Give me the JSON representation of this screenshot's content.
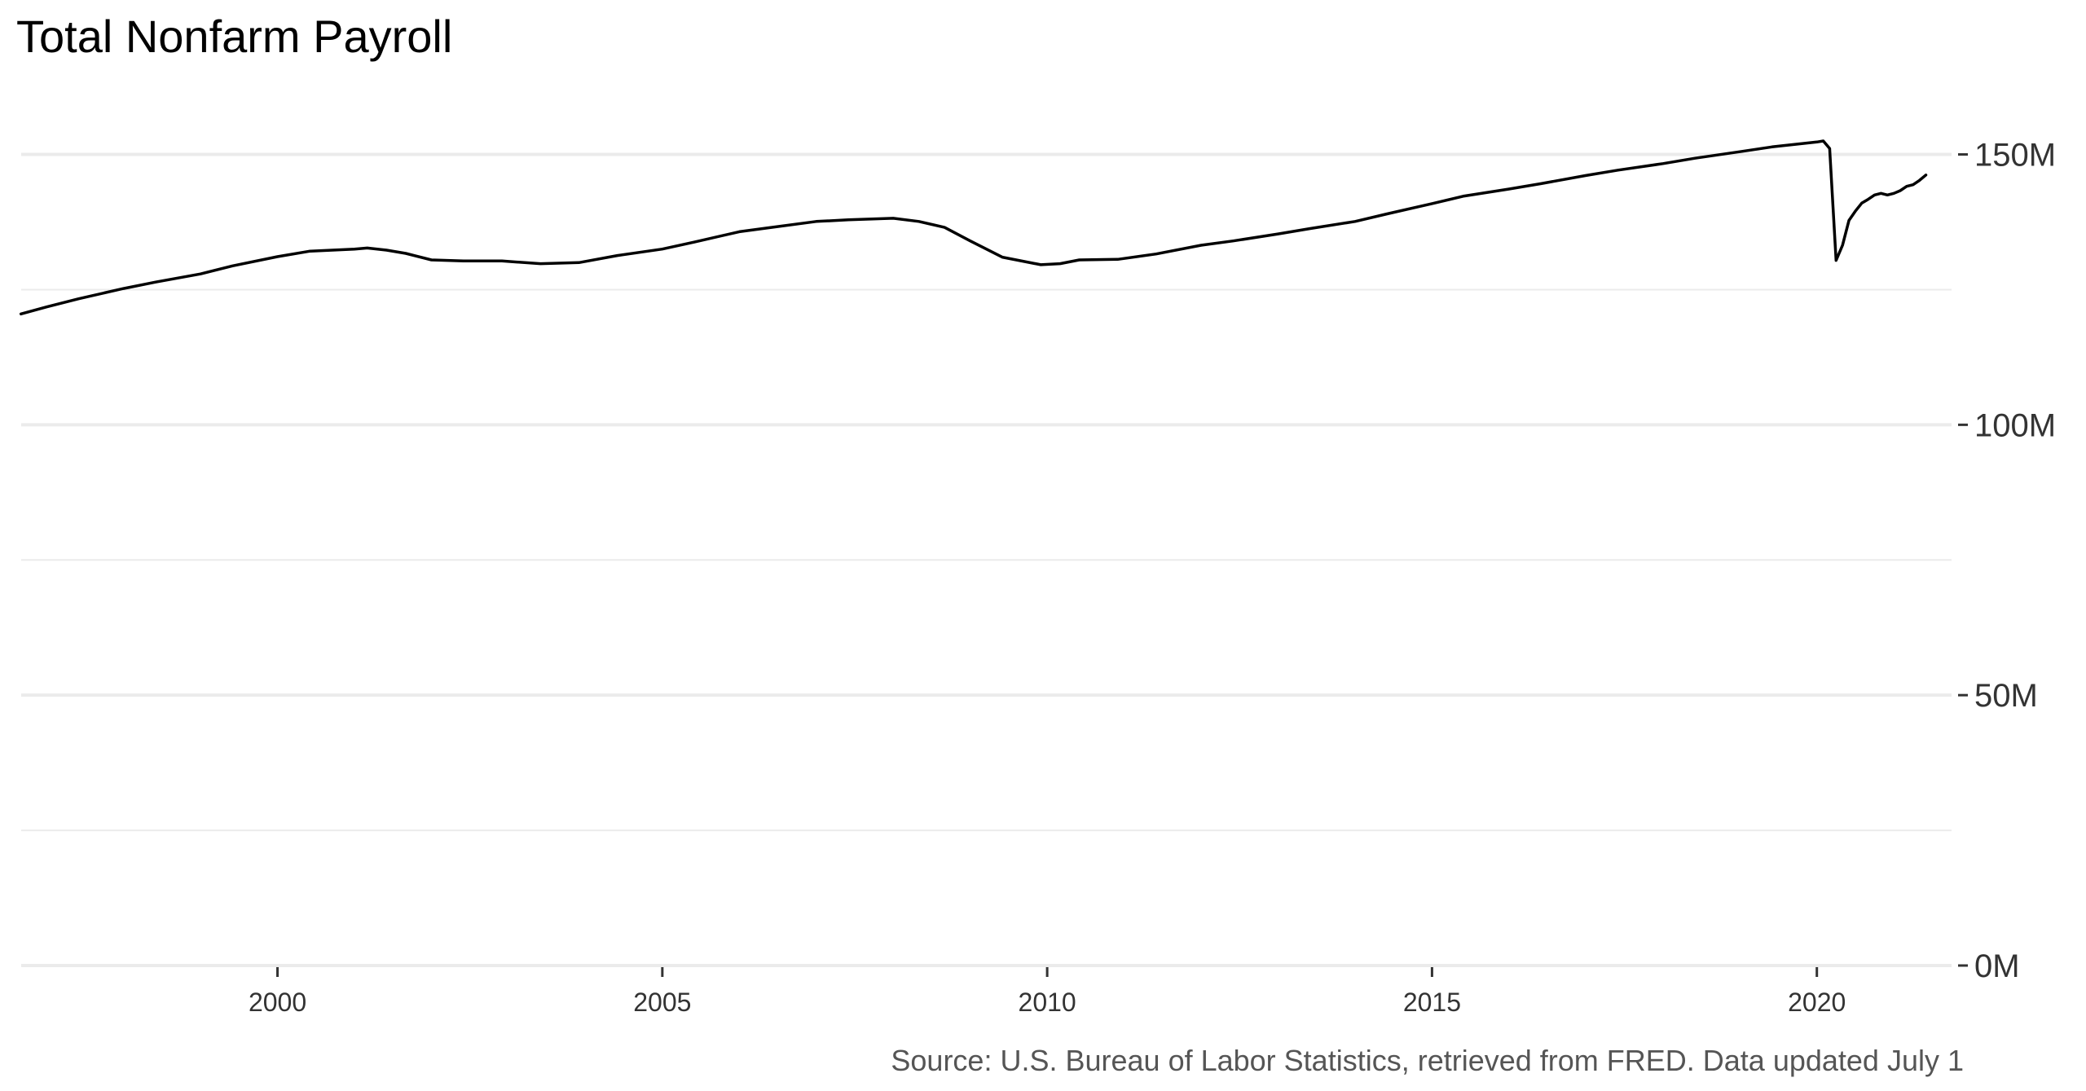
{
  "chart_data": {
    "type": "line",
    "title": "Total Nonfarm Payroll",
    "caption": "Source: U.S. Bureau of Labor Statistics, retrieved from FRED. Data updated July 1",
    "xlabel": "",
    "ylabel": "",
    "xlim": [
      1996.67,
      2021.75
    ],
    "ylim": [
      0,
      165000000
    ],
    "x_ticks": [
      2000,
      2005,
      2010,
      2015,
      2020
    ],
    "x_tick_labels": [
      "2000",
      "2005",
      "2010",
      "2015",
      "2020"
    ],
    "y_ticks": [
      0,
      50000000,
      100000000,
      150000000
    ],
    "y_tick_labels": [
      "0M",
      "50M",
      "100M",
      "150M"
    ],
    "y_axis_side": "right",
    "grid": "horizontal major and minor",
    "legend": "none",
    "line_color": "#000000",
    "grid_color": "#ebebeb",
    "series": [
      {
        "x": [
          "1996-09",
          "1997-01",
          "1997-06",
          "1998-01",
          "1998-06",
          "1999-01",
          "1999-06",
          "2000-01",
          "2000-06",
          "2001-01",
          "2001-03",
          "2001-06",
          "2001-09",
          "2002-01",
          "2002-06",
          "2002-12",
          "2003-06",
          "2003-12",
          "2004-06",
          "2005-01",
          "2005-06",
          "2006-01",
          "2006-06",
          "2007-01",
          "2007-06",
          "2008-01",
          "2008-05",
          "2008-09",
          "2009-01",
          "2009-06",
          "2009-12",
          "2010-03",
          "2010-06",
          "2010-12",
          "2011-06",
          "2012-01",
          "2012-06",
          "2013-01",
          "2013-06",
          "2014-01",
          "2014-06",
          "2015-01",
          "2015-06",
          "2016-01",
          "2016-06",
          "2017-01",
          "2017-06",
          "2018-01",
          "2018-06",
          "2019-01",
          "2019-06",
          "2020-01",
          "2020-02",
          "2020-03",
          "2020-04",
          "2020-05",
          "2020-06",
          "2020-07",
          "2020-08",
          "2020-09",
          "2020-10",
          "2020-11",
          "2020-12",
          "2021-01",
          "2021-02",
          "2021-03",
          "2021-04",
          "2021-05",
          "2021-06"
        ],
        "values": [
          120500000,
          121800000,
          123300000,
          125200000,
          126400000,
          127900000,
          129400000,
          131100000,
          132100000,
          132500000,
          132700000,
          132300000,
          131700000,
          130500000,
          130300000,
          130300000,
          129800000,
          130000000,
          131300000,
          132500000,
          133800000,
          135700000,
          136500000,
          137600000,
          137900000,
          138200000,
          137600000,
          136500000,
          134000000,
          131000000,
          129600000,
          129800000,
          130500000,
          130600000,
          131600000,
          133200000,
          134000000,
          135300000,
          136300000,
          137600000,
          139000000,
          140900000,
          142300000,
          143600000,
          144600000,
          146100000,
          147100000,
          148300000,
          149300000,
          150500000,
          151400000,
          152300000,
          152500000,
          151100000,
          130400000,
          133200000,
          137800000,
          139500000,
          141000000,
          141700000,
          142500000,
          142800000,
          142500000,
          142800000,
          143300000,
          144100000,
          144400000,
          145200000,
          146200000
        ]
      }
    ]
  }
}
